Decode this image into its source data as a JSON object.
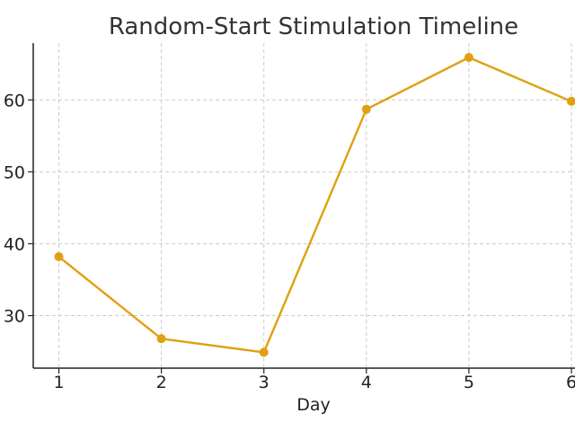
{
  "chart_data": {
    "type": "line",
    "title": "Random-Start Stimulation Timeline",
    "xlabel": "Day",
    "ylabel": "",
    "x": [
      1,
      2,
      3,
      4,
      5,
      6
    ],
    "x_tick_labels": [
      "1",
      "2",
      "3",
      "4",
      "5",
      "6"
    ],
    "xlim": [
      0.75,
      6
    ],
    "series": [
      {
        "values": [
          38.2,
          26.8,
          24.9,
          58.7,
          65.9,
          59.8
        ],
        "color": "#e0a010",
        "marker": "circle"
      }
    ],
    "y_ticks": [
      30,
      40,
      50,
      60
    ],
    "y_tick_labels": [
      "30",
      "40",
      "50",
      "60"
    ],
    "ylim": [
      22.7,
      67.9
    ],
    "grid": true,
    "legend": "none"
  }
}
